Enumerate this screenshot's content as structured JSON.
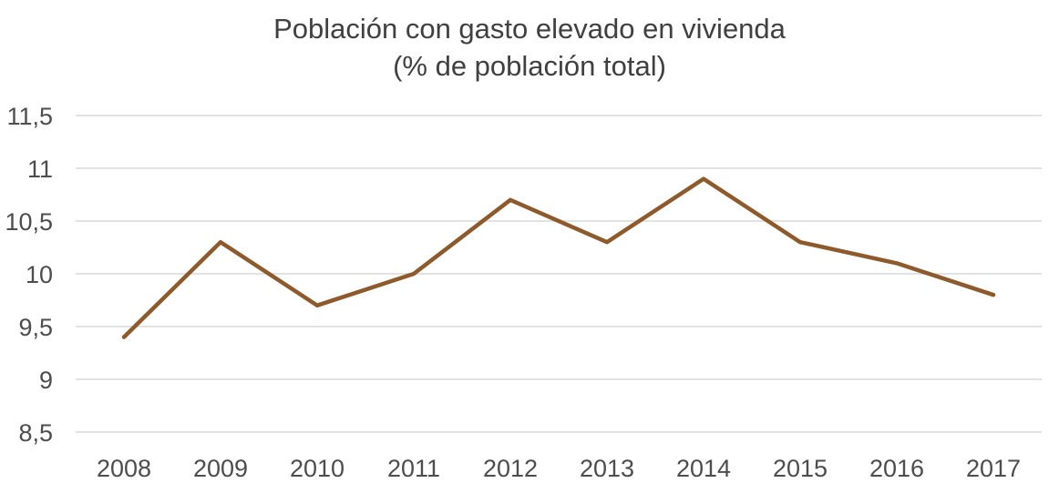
{
  "chart": {
    "title_line1": "Población con gasto elevado en vivienda",
    "title_line2": "(% de población total)"
  },
  "colors": {
    "background": "#ffffff",
    "title_text": "#404040",
    "tick_text": "#4d4d4d",
    "gridline": "#d9d9d9",
    "series_line": "#8e5a2b"
  },
  "chart_data": {
    "type": "line",
    "title": "Población con gasto elevado en vivienda (% de población total)",
    "categories": [
      "2008",
      "2009",
      "2010",
      "2011",
      "2012",
      "2013",
      "2014",
      "2015",
      "2016",
      "2017"
    ],
    "series": [
      {
        "name": "Población con gasto elevado en vivienda (% de población total)",
        "values": [
          9.4,
          10.3,
          9.7,
          10.0,
          10.7,
          10.3,
          10.9,
          10.3,
          10.1,
          9.8
        ]
      }
    ],
    "xlabel": "",
    "ylabel": "",
    "ylim": [
      8.5,
      11.5
    ],
    "ytick_values": [
      8.5,
      9,
      9.5,
      10,
      10.5,
      11,
      11.5
    ],
    "ytick_labels": [
      "8,5",
      "9",
      "9,5",
      "10",
      "10,5",
      "11",
      "11,5"
    ],
    "decimal_separator": ",",
    "grid": true,
    "legend": false,
    "markers": false
  }
}
